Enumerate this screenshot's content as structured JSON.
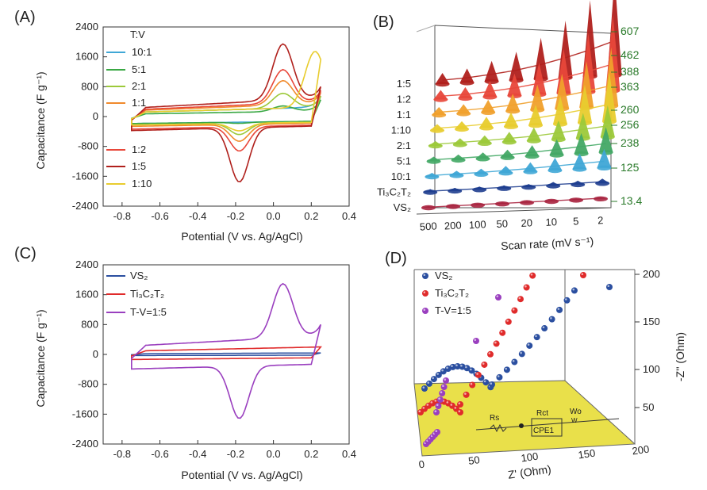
{
  "colors": {
    "r10_1": "#3fa7d6",
    "r5_1": "#3aa844",
    "r2_1": "#9cc93a",
    "r1_1": "#f08a2c",
    "r1_2": "#e8473a",
    "r1_5": "#b0201c",
    "r1_10": "#e8cc2e",
    "vs2": "#2b4fa0",
    "ti": "#e02b2b",
    "tv": "#9a3fbf",
    "green": "#2a7a2a",
    "floor": "#e9e04a"
  },
  "chart_data": [
    {
      "id": "A",
      "panel_label": "(A)",
      "type": "line",
      "xlabel": "Potential (V vs. Ag/AgCl)",
      "ylabel": "Capacitance (F g⁻¹)",
      "xlim": [
        -0.9,
        0.4
      ],
      "ylim": [
        -2400,
        2400
      ],
      "xticks": [
        "-0.8",
        "-0.6",
        "-0.4",
        "-0.2",
        "0.0",
        "0.2",
        "0.4"
      ],
      "yticks": [
        "2400",
        "1600",
        "800",
        "0",
        "-800",
        "-1600",
        "-2400"
      ],
      "legend_title": "T:V",
      "series": [
        {
          "name": "10:1",
          "color": "#3fa7d6",
          "peak_ox": [
            0.05,
            250
          ],
          "peak_red": [
            -0.18,
            -250
          ],
          "upper": 250,
          "lower": -250
        },
        {
          "name": "5:1",
          "color": "#3aa844",
          "peak_ox": [
            0.05,
            300
          ],
          "peak_red": [
            -0.18,
            -280
          ],
          "upper": 150,
          "lower": -250
        },
        {
          "name": "2:1",
          "color": "#9cc93a",
          "peak_ox": [
            0.05,
            650
          ],
          "peak_red": [
            -0.18,
            -600
          ],
          "upper": 250,
          "lower": -300
        },
        {
          "name": "1:1",
          "color": "#f08a2c",
          "peak_ox": [
            0.05,
            1000
          ],
          "peak_red": [
            -0.18,
            -800
          ],
          "upper": 350,
          "lower": -350
        },
        {
          "name": "1:2",
          "color": "#e8473a",
          "peak_ox": [
            0.05,
            1300
          ],
          "peak_red": [
            -0.18,
            -1100
          ],
          "upper": 400,
          "lower": -450
        },
        {
          "name": "1:5",
          "color": "#b0201c",
          "peak_ox": [
            0.05,
            2000
          ],
          "peak_red": [
            -0.18,
            -1950
          ],
          "upper": 500,
          "lower": -500
        },
        {
          "name": "1:10",
          "color": "#e8cc2e",
          "peak_ox": [
            0.22,
            1750
          ],
          "peak_red": [
            -0.18,
            -500
          ],
          "upper": 250,
          "lower": -300
        }
      ]
    },
    {
      "id": "B",
      "panel_label": "(B)",
      "type": "bar",
      "xlabel": "Scan rate (mV s⁻¹)",
      "categories": [
        "500",
        "200",
        "100",
        "50",
        "20",
        "10",
        "5",
        "2"
      ],
      "series": [
        {
          "name": "VS₂",
          "color": "#a8243f",
          "end_value": "13.4"
        },
        {
          "name": "Ti₃C₂T₂",
          "color": "#1f3e8f",
          "end_value": "125"
        },
        {
          "name": "10:1",
          "color": "#3fa7d6",
          "end_value": "238"
        },
        {
          "name": "5:1",
          "color": "#43a865",
          "end_value": "256"
        },
        {
          "name": "2:1",
          "color": "#9cc93a",
          "end_value": "260"
        },
        {
          "name": "1:10",
          "color": "#e8cc2e",
          "end_value": "363"
        },
        {
          "name": "1:1",
          "color": "#f0a02c",
          "end_value": "388"
        },
        {
          "name": "1:2",
          "color": "#e8473a",
          "end_value": "462"
        },
        {
          "name": "1:5",
          "color": "#b0201c",
          "end_value": "607"
        }
      ],
      "right_values": [
        "607",
        "462",
        "388",
        "363",
        "260",
        "256",
        "238",
        "125",
        "13.4"
      ]
    },
    {
      "id": "C",
      "panel_label": "(C)",
      "type": "line",
      "xlabel": "Potential (V vs. Ag/AgCl)",
      "ylabel": "Capacitance (F g⁻¹)",
      "xlim": [
        -0.9,
        0.4
      ],
      "ylim": [
        -2400,
        2400
      ],
      "xticks": [
        "-0.8",
        "-0.6",
        "-0.4",
        "-0.2",
        "0.0",
        "0.2",
        "0.4"
      ],
      "yticks": [
        "2400",
        "1600",
        "800",
        "0",
        "-800",
        "-1600",
        "-2400"
      ],
      "series": [
        {
          "name": "VS₂",
          "color": "#2b4fa0"
        },
        {
          "name": "Ti₃C₂T₂",
          "color": "#e02b2b"
        },
        {
          "name": "T-V=1:5",
          "color": "#9a3fbf"
        }
      ]
    },
    {
      "id": "D",
      "panel_label": "(D)",
      "type": "scatter",
      "xlabel": "Z' (Ohm)",
      "ylabel": "-Z'' (Ohm)",
      "xticks": [
        "0",
        "50",
        "100",
        "150",
        "200"
      ],
      "zticks": [
        "200",
        "150",
        "100",
        "50"
      ],
      "series": [
        {
          "name": "VS₂",
          "color": "#2b4fa0"
        },
        {
          "name": "Ti₃C₂T₂",
          "color": "#e02b2b"
        },
        {
          "name": "T-V=1:5",
          "color": "#9a3fbf"
        }
      ],
      "circuit_labels": {
        "rs": "Rs",
        "rct": "Rct",
        "cpe": "CPE1",
        "wo": "Wo",
        "wo_sub": "W"
      }
    }
  ]
}
